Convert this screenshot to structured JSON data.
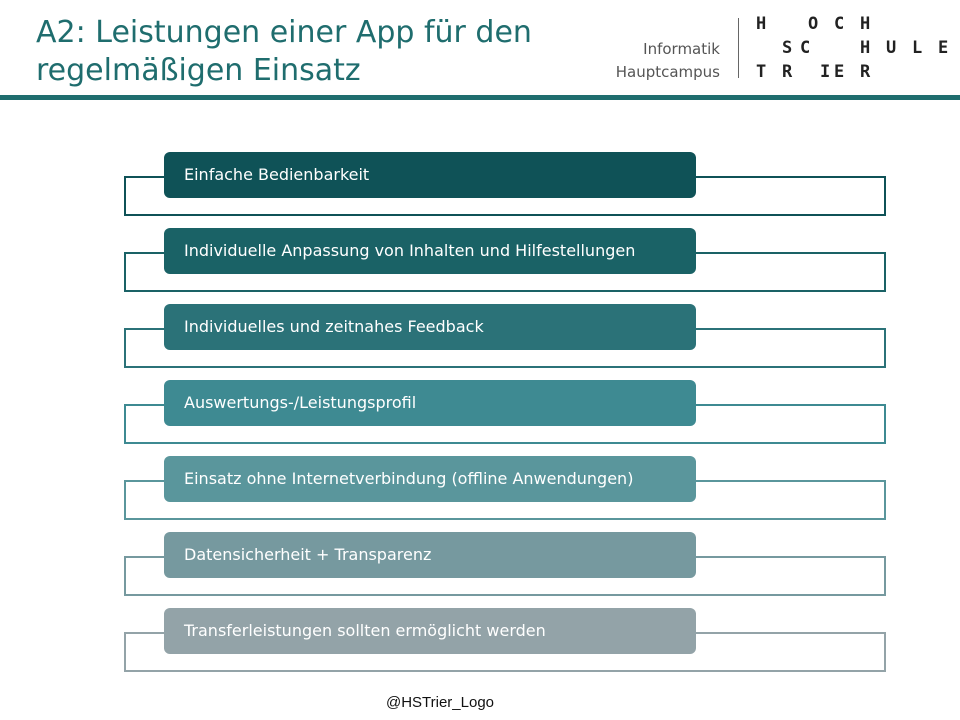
{
  "header": {
    "title_line1": "A2: Leistungen einer App für den",
    "title_line2": "regelmäßigen Einsatz",
    "institution_line1": "Informatik",
    "institution_line2": "Hauptcampus",
    "logo_rows": [
      [
        "H",
        "O",
        "C",
        "H"
      ],
      [
        "S",
        "C",
        "H",
        "U",
        "L",
        "E"
      ],
      [
        "T",
        "R",
        "I",
        "E",
        "R"
      ]
    ],
    "accent_color": "#1f6d6e"
  },
  "list": {
    "items": [
      {
        "label": "Einfache Bedienbarkeit",
        "color": "#0f5257"
      },
      {
        "label": "Individuelle Anpassung von Inhalten und Hilfestellungen",
        "color": "#1a6266"
      },
      {
        "label": "Individuelles  und zeitnahes Feedback",
        "color": "#2b7278"
      },
      {
        "label": "Auswertungs-/Leistungsprofil",
        "color": "#3e8a92"
      },
      {
        "label": "Einsatz ohne Internetverbindung  (offline Anwendungen)",
        "color": "#5a969c"
      },
      {
        "label": "Datensicherheit  + Transparenz",
        "color": "#76999f"
      },
      {
        "label": "Transferleistungen  sollten ermöglicht werden",
        "color": "#93a3a8"
      }
    ]
  },
  "footer": {
    "text": "@HSTrier_Logo"
  }
}
